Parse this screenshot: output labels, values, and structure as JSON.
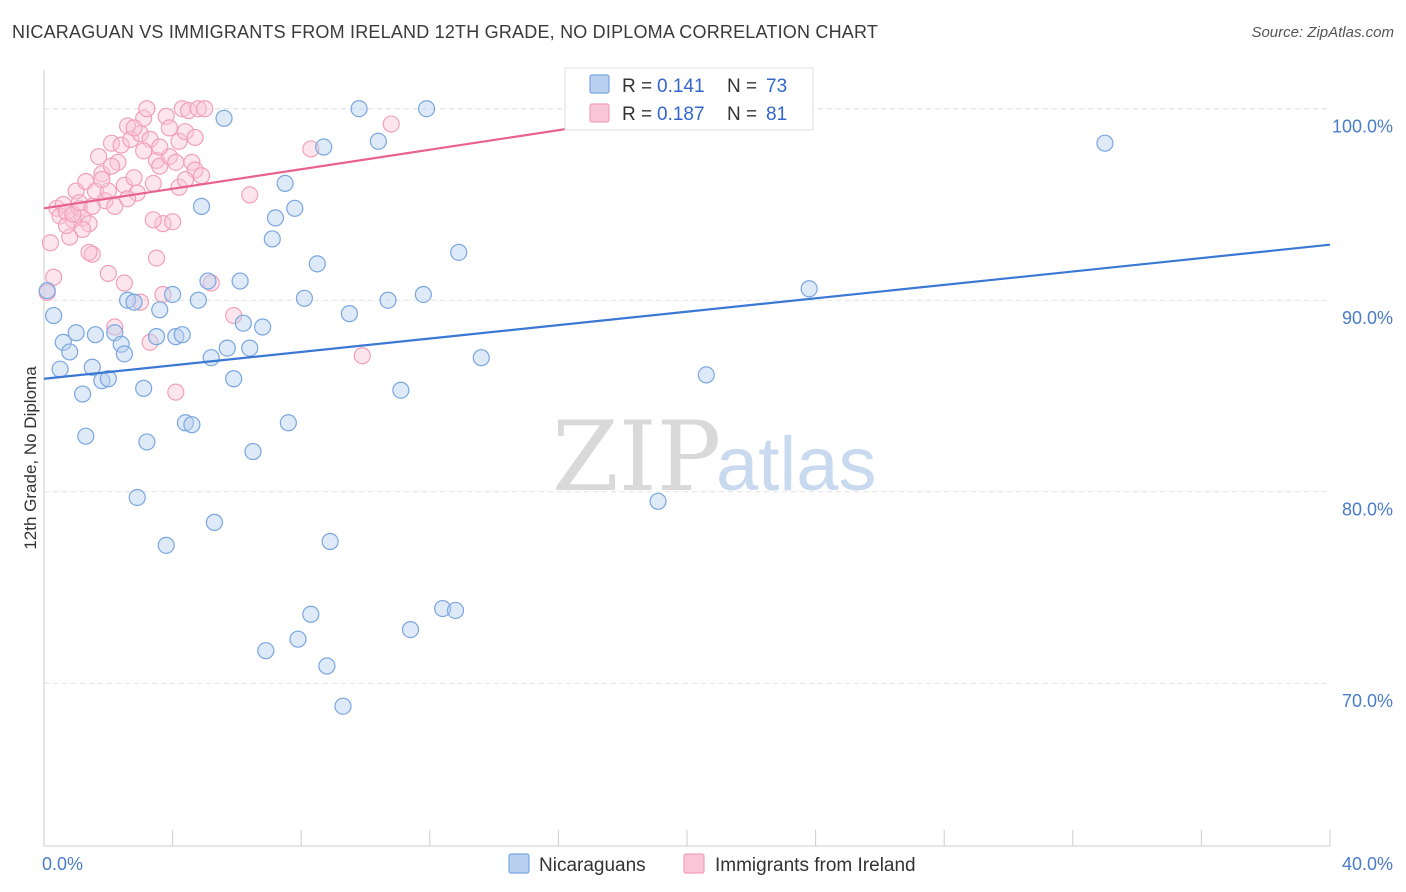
{
  "header": {
    "title": "NICARAGUAN VS IMMIGRANTS FROM IRELAND 12TH GRADE, NO DIPLOMA CORRELATION CHART",
    "source": "Source: ZipAtlas.com"
  },
  "watermark": {
    "zip": "ZIP",
    "atlas": "atlas"
  },
  "colors": {
    "blue": "#7aa6e0",
    "blue_line": "#3a78d4",
    "pink": "#f2a0bb",
    "pink_line": "#e8628f",
    "axis_label": "#4a7cc9"
  },
  "legend_box": {
    "rows": [
      {
        "r_label": "R = ",
        "r_value": "0.141",
        "n_label": "N = ",
        "n_value": "73"
      },
      {
        "r_label": "R = ",
        "r_value": "0.187",
        "n_label": "N = ",
        "n_value": "81"
      }
    ]
  },
  "chart_data": {
    "type": "scatter",
    "title": "NICARAGUAN VS IMMIGRANTS FROM IRELAND 12TH GRADE, NO DIPLOMA CORRELATION CHART",
    "ylabel": "12th Grade, No Diploma",
    "xlabel": "",
    "xlim": [
      0,
      40
    ],
    "ylim": [
      61.5,
      101.5
    ],
    "x_tick_labels": [
      "0.0%",
      "40.0%"
    ],
    "y_ticks": [
      70,
      80,
      90,
      100
    ],
    "y_tick_labels": [
      "70.0%",
      "80.0%",
      "90.0%",
      "100.0%"
    ],
    "grid": "horizontal dashed",
    "legend_position": "bottom",
    "series": [
      {
        "name": "Nicaraguans",
        "r": 0.141,
        "n": 73,
        "trend": [
          [
            0,
            85.9
          ],
          [
            40,
            92.9
          ]
        ],
        "points": [
          [
            0.1,
            90.5
          ],
          [
            0.3,
            89.2
          ],
          [
            0.5,
            86.4
          ],
          [
            0.6,
            87.8
          ],
          [
            0.8,
            87.3
          ],
          [
            1.0,
            88.3
          ],
          [
            1.2,
            85.1
          ],
          [
            1.3,
            82.9
          ],
          [
            1.5,
            86.5
          ],
          [
            1.6,
            88.2
          ],
          [
            1.8,
            85.8
          ],
          [
            2.0,
            85.9
          ],
          [
            2.2,
            88.3
          ],
          [
            2.4,
            87.7
          ],
          [
            2.5,
            87.2
          ],
          [
            2.6,
            90.0
          ],
          [
            2.8,
            89.9
          ],
          [
            2.9,
            79.7
          ],
          [
            3.1,
            85.4
          ],
          [
            3.2,
            82.6
          ],
          [
            3.5,
            88.1
          ],
          [
            3.6,
            89.5
          ],
          [
            3.8,
            77.2
          ],
          [
            4.0,
            90.3
          ],
          [
            4.1,
            88.1
          ],
          [
            4.3,
            88.2
          ],
          [
            4.4,
            83.6
          ],
          [
            4.6,
            83.5
          ],
          [
            4.8,
            90.0
          ],
          [
            4.9,
            94.9
          ],
          [
            5.1,
            91.0
          ],
          [
            5.2,
            87.0
          ],
          [
            5.3,
            78.4
          ],
          [
            5.6,
            99.5
          ],
          [
            5.7,
            87.5
          ],
          [
            5.9,
            85.9
          ],
          [
            6.1,
            91.0
          ],
          [
            6.2,
            88.8
          ],
          [
            6.4,
            87.5
          ],
          [
            6.5,
            82.1
          ],
          [
            6.8,
            88.6
          ],
          [
            6.9,
            71.7
          ],
          [
            7.1,
            93.2
          ],
          [
            7.2,
            94.3
          ],
          [
            7.5,
            96.1
          ],
          [
            7.6,
            83.6
          ],
          [
            7.8,
            94.8
          ],
          [
            7.9,
            72.3
          ],
          [
            8.1,
            90.1
          ],
          [
            8.3,
            73.6
          ],
          [
            8.5,
            91.9
          ],
          [
            8.7,
            98.0
          ],
          [
            8.8,
            70.9
          ],
          [
            8.9,
            77.4
          ],
          [
            9.3,
            68.8
          ],
          [
            9.5,
            89.3
          ],
          [
            9.8,
            100.0
          ],
          [
            10.4,
            98.3
          ],
          [
            10.7,
            90.0
          ],
          [
            11.1,
            85.3
          ],
          [
            11.4,
            72.8
          ],
          [
            11.8,
            90.3
          ],
          [
            11.9,
            100.0
          ],
          [
            12.4,
            73.9
          ],
          [
            12.8,
            73.8
          ],
          [
            12.9,
            92.5
          ],
          [
            13.6,
            87.0
          ],
          [
            19.1,
            79.5
          ],
          [
            20.6,
            86.1
          ],
          [
            21.0,
            100.0
          ],
          [
            23.6,
            100.0
          ],
          [
            23.8,
            90.6
          ],
          [
            33.0,
            98.2
          ]
        ]
      },
      {
        "name": "Immigrants from Ireland",
        "r": 0.187,
        "n": 81,
        "trend": [
          [
            0,
            94.8
          ],
          [
            20,
            99.9
          ]
        ],
        "points": [
          [
            0.1,
            90.4
          ],
          [
            0.2,
            93.0
          ],
          [
            0.3,
            91.2
          ],
          [
            0.4,
            94.8
          ],
          [
            0.5,
            94.4
          ],
          [
            0.6,
            95.0
          ],
          [
            0.7,
            94.6
          ],
          [
            0.8,
            93.3
          ],
          [
            0.9,
            94.2
          ],
          [
            1.0,
            95.7
          ],
          [
            1.1,
            94.8
          ],
          [
            1.2,
            94.3
          ],
          [
            1.3,
            96.2
          ],
          [
            1.4,
            94.0
          ],
          [
            1.5,
            92.4
          ],
          [
            1.6,
            95.7
          ],
          [
            1.7,
            97.5
          ],
          [
            1.8,
            96.6
          ],
          [
            1.9,
            95.2
          ],
          [
            2.0,
            95.7
          ],
          [
            2.1,
            98.2
          ],
          [
            2.2,
            94.9
          ],
          [
            2.3,
            97.2
          ],
          [
            2.4,
            98.1
          ],
          [
            2.5,
            96.0
          ],
          [
            2.6,
            99.1
          ],
          [
            2.7,
            98.4
          ],
          [
            2.8,
            96.4
          ],
          [
            2.9,
            95.6
          ],
          [
            3.0,
            98.7
          ],
          [
            3.1,
            99.5
          ],
          [
            3.2,
            100.0
          ],
          [
            3.3,
            98.4
          ],
          [
            3.4,
            96.1
          ],
          [
            3.5,
            97.3
          ],
          [
            3.6,
            97.0
          ],
          [
            3.7,
            94.0
          ],
          [
            3.8,
            99.6
          ],
          [
            3.9,
            97.5
          ],
          [
            4.0,
            94.1
          ],
          [
            4.1,
            97.2
          ],
          [
            4.2,
            98.3
          ],
          [
            4.3,
            100.0
          ],
          [
            4.4,
            98.8
          ],
          [
            4.5,
            99.9
          ],
          [
            4.6,
            97.2
          ],
          [
            4.7,
            96.8
          ],
          [
            4.8,
            100.0
          ],
          [
            4.9,
            96.5
          ],
          [
            5.0,
            100.0
          ],
          [
            1.2,
            93.7
          ],
          [
            1.4,
            92.5
          ],
          [
            2.0,
            91.4
          ],
          [
            2.2,
            88.6
          ],
          [
            2.5,
            90.9
          ],
          [
            3.0,
            89.9
          ],
          [
            3.3,
            87.8
          ],
          [
            3.5,
            92.2
          ],
          [
            3.7,
            90.3
          ],
          [
            4.1,
            85.2
          ],
          [
            5.2,
            90.9
          ],
          [
            5.9,
            89.2
          ],
          [
            6.4,
            95.5
          ],
          [
            8.3,
            97.9
          ],
          [
            9.9,
            87.1
          ],
          [
            10.8,
            99.2
          ],
          [
            0.7,
            93.9
          ],
          [
            0.9,
            94.5
          ],
          [
            1.1,
            95.1
          ],
          [
            1.5,
            94.9
          ],
          [
            1.8,
            96.3
          ],
          [
            2.1,
            97.0
          ],
          [
            2.6,
            95.3
          ],
          [
            2.8,
            99.0
          ],
          [
            3.1,
            97.8
          ],
          [
            3.4,
            94.2
          ],
          [
            3.6,
            98.0
          ],
          [
            3.9,
            99.0
          ],
          [
            4.2,
            95.9
          ],
          [
            4.4,
            96.3
          ],
          [
            4.7,
            98.5
          ]
        ]
      }
    ]
  }
}
